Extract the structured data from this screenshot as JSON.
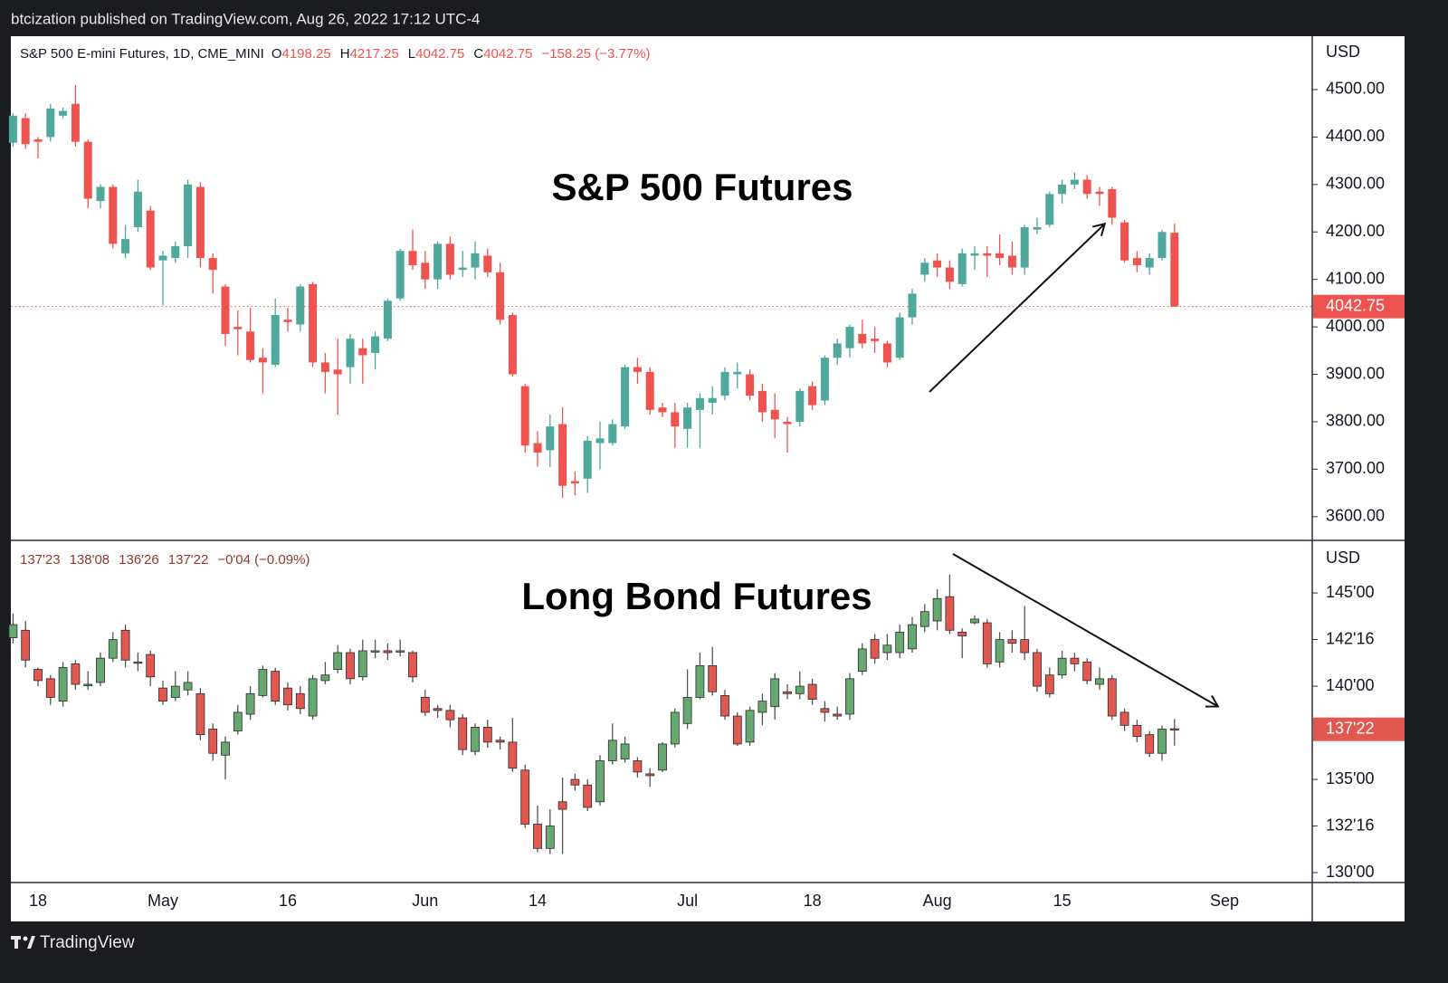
{
  "header_text": "btcization published on TradingView.com, Aug 26, 2022 17:12 UTC-4",
  "brand": "TradingView",
  "time_axis": {
    "categories": [
      null,
      null,
      "18",
      null,
      null,
      null,
      null,
      null,
      null,
      null,
      null,
      null,
      "May",
      null,
      null,
      null,
      null,
      null,
      null,
      null,
      null,
      null,
      "16",
      null,
      null,
      null,
      null,
      null,
      null,
      null,
      null,
      null,
      null,
      "Jun",
      null,
      null,
      null,
      null,
      null,
      null,
      null,
      null,
      "14",
      null,
      null,
      null,
      null,
      null,
      null,
      null,
      null,
      null,
      null,
      null,
      "Jul",
      null,
      null,
      null,
      null,
      null,
      null,
      null,
      null,
      null,
      "18",
      null,
      null,
      null,
      null,
      null,
      null,
      null,
      null,
      null,
      "Aug",
      null,
      null,
      null,
      null,
      null,
      null,
      null,
      null,
      null,
      "15",
      null,
      null,
      null,
      null,
      null,
      null,
      null,
      null,
      null,
      null,
      null,
      null,
      "Sep"
    ]
  },
  "chart_data": [
    {
      "type": "candlestick",
      "title": "S&P 500 Futures",
      "symbol": "S&P 500 E-mini Futures, 1D, CME_MINI",
      "header_keys": [
        "O",
        "H",
        "L",
        "C"
      ],
      "header_values": [
        4198.25,
        4217.25,
        4042.75,
        4042.75
      ],
      "header_change": "−158.25 (−3.77%)",
      "unit_label": "USD",
      "last_price": 4042.75,
      "up_color": "#4ea89b",
      "down_color": "#ef5350",
      "ylim": [
        3550,
        4612.5
      ],
      "yticks": [
        {
          "value": 3600,
          "label": "3600.00"
        },
        {
          "value": 3700,
          "label": "3700.00"
        },
        {
          "value": 3800,
          "label": "3800.00"
        },
        {
          "value": 3900,
          "label": "3900.00"
        },
        {
          "value": 4000,
          "label": "4000.00"
        },
        {
          "value": 4100,
          "label": "4100.00"
        },
        {
          "value": 4200,
          "label": "4200.00"
        },
        {
          "value": 4300,
          "label": "4300.00"
        },
        {
          "value": 4400,
          "label": "4400.00"
        },
        {
          "value": 4500,
          "label": "4500.00"
        }
      ],
      "open": [
        4388,
        4440,
        4395,
        4400,
        4445,
        4470,
        4390,
        4265,
        4295,
        4155,
        4210,
        4245,
        4140,
        4145,
        4170,
        4295,
        4145,
        4085,
        4000,
        3990,
        3935,
        3920,
        4015,
        4005,
        4090,
        3925,
        3910,
        3915,
        3955,
        3945,
        3975,
        4060,
        4160,
        4135,
        4100,
        4175,
        4120,
        4125,
        4150,
        4115,
        4025,
        3875,
        3755,
        3740,
        3795,
        3675,
        3680,
        3755,
        3755,
        3790,
        3915,
        3905,
        3830,
        3820,
        3785,
        3825,
        3840,
        3855,
        3900,
        3900,
        3865,
        3825,
        3800,
        3800,
        3875,
        3845,
        3935,
        3955,
        3985,
        3975,
        3965,
        3935,
        4020,
        4110,
        4140,
        4125,
        4090,
        4150,
        4155,
        4155,
        4150,
        4125,
        4205,
        4215,
        4280,
        4300,
        4310,
        4285,
        4290,
        4220,
        4145,
        4125,
        4145,
        4198.25,
        null,
        null,
        null,
        null
      ],
      "high": [
        4450,
        4450,
        4400,
        4470,
        4462,
        4510,
        4395,
        4300,
        4300,
        4215,
        4310,
        4255,
        4160,
        4180,
        4310,
        4305,
        4155,
        4090,
        4035,
        4040,
        3955,
        4060,
        4040,
        4090,
        4095,
        3945,
        3975,
        3985,
        3975,
        3990,
        4060,
        4165,
        4205,
        4160,
        4180,
        4190,
        4160,
        4180,
        4165,
        4135,
        4030,
        3880,
        3780,
        3815,
        3830,
        3695,
        3770,
        3800,
        3805,
        3920,
        3935,
        3915,
        3840,
        3840,
        3840,
        3860,
        3875,
        3915,
        3925,
        3910,
        3880,
        3860,
        3810,
        3870,
        3885,
        3940,
        3975,
        4005,
        4015,
        4000,
        3970,
        4030,
        4080,
        4145,
        4155,
        4140,
        4165,
        4170,
        4170,
        4195,
        4180,
        4215,
        4230,
        4285,
        4310,
        4325,
        4320,
        4295,
        4295,
        4225,
        4160,
        4155,
        4205,
        4217.25,
        null,
        null,
        null,
        null
      ],
      "low": [
        4380,
        4375,
        4355,
        4390,
        4440,
        4380,
        4250,
        4250,
        4165,
        4145,
        4200,
        4120,
        4045,
        4135,
        4145,
        4125,
        4070,
        3960,
        3940,
        3925,
        3860,
        3915,
        3990,
        3990,
        3915,
        3860,
        3815,
        3880,
        3880,
        3910,
        3970,
        4055,
        4120,
        4080,
        4080,
        4100,
        4105,
        4100,
        4105,
        4005,
        3895,
        3735,
        3705,
        3705,
        3640,
        3645,
        3650,
        3700,
        3750,
        3785,
        3880,
        3815,
        3810,
        3745,
        3745,
        3745,
        3815,
        3845,
        3870,
        3845,
        3800,
        3765,
        3735,
        3790,
        3825,
        3835,
        3920,
        3935,
        3955,
        3945,
        3915,
        3930,
        4005,
        4095,
        4105,
        4080,
        4085,
        4120,
        4105,
        4130,
        4110,
        4110,
        4195,
        4210,
        4260,
        4290,
        4270,
        4255,
        4215,
        4135,
        4115,
        4110,
        4140,
        4042.75,
        null,
        null,
        null,
        null
      ],
      "close": [
        4445,
        4385,
        4390,
        4460,
        4455,
        4390,
        4270,
        4295,
        4175,
        4185,
        4285,
        4125,
        4150,
        4170,
        4300,
        4145,
        4120,
        3985,
        3995,
        3930,
        3925,
        4025,
        4010,
        4085,
        3925,
        3905,
        3900,
        3975,
        3940,
        3980,
        4055,
        4160,
        4130,
        4100,
        4175,
        4110,
        4125,
        4155,
        4115,
        4015,
        3900,
        3750,
        3735,
        3790,
        3665,
        3670,
        3760,
        3765,
        3795,
        3915,
        3905,
        3825,
        3820,
        3790,
        3830,
        3850,
        3850,
        3905,
        3905,
        3855,
        3820,
        3805,
        3795,
        3865,
        3835,
        3935,
        3965,
        4000,
        3965,
        3970,
        3925,
        4020,
        4070,
        4135,
        4125,
        4095,
        4155,
        4155,
        4150,
        4145,
        4125,
        4210,
        4210,
        4280,
        4300,
        4310,
        4280,
        4280,
        4230,
        4140,
        4130,
        4145,
        4200,
        4042.75,
        null,
        null,
        null,
        null
      ]
    },
    {
      "type": "candlestick",
      "title": "Long Bond Futures",
      "header_values": [
        "137'23",
        "138'08",
        "136'26",
        "137'22"
      ],
      "header_change": "−0'04 (−0.09%)",
      "unit_label": "USD",
      "last_price": {
        "value": 137.6875,
        "label": "137'22"
      },
      "up_color": "#66a970",
      "down_color": "#e0584f",
      "ylim": [
        129.47,
        147.82
      ],
      "yticks": [
        {
          "value": 130,
          "label": "130'00"
        },
        {
          "value": 132.5,
          "label": "132'16"
        },
        {
          "value": 135,
          "label": "135'00"
        },
        {
          "value": 140,
          "label": "140'00"
        },
        {
          "value": 142.5,
          "label": "142'16"
        },
        {
          "value": 145,
          "label": "145'00"
        }
      ],
      "open": [
        142.6,
        143.0,
        140.9,
        140.4,
        139.2,
        141.2,
        140.1,
        140.2,
        141.5,
        143.0,
        141.3,
        141.7,
        139.9,
        139.4,
        139.8,
        139.6,
        137.7,
        136.3,
        137.6,
        138.5,
        139.5,
        140.8,
        139.9,
        139.6,
        138.4,
        140.3,
        140.9,
        141.8,
        140.5,
        141.9,
        141.9,
        141.9,
        141.8,
        139.4,
        138.8,
        138.7,
        138.3,
        136.5,
        137.8,
        137.1,
        137.0,
        135.5,
        132.6,
        131.3,
        133.8,
        135.0,
        134.7,
        133.8,
        136.0,
        136.1,
        136.0,
        135.3,
        135.5,
        136.9,
        138.0,
        139.4,
        141.1,
        139.5,
        138.4,
        137.0,
        138.6,
        138.9,
        139.7,
        139.6,
        140.1,
        138.8,
        138.5,
        138.5,
        140.8,
        142.5,
        141.8,
        141.8,
        142.0,
        143.2,
        143.5,
        144.8,
        142.9,
        143.4,
        143.4,
        141.3,
        142.5,
        142.5,
        141.8,
        140.6,
        140.6,
        141.5,
        141.3,
        140.1,
        140.4,
        138.6,
        137.9,
        137.4,
        136.4,
        137.71875,
        null,
        null,
        null,
        null
      ],
      "high": [
        143.9,
        143.5,
        141.0,
        140.6,
        141.3,
        141.4,
        140.8,
        141.8,
        142.9,
        143.3,
        141.8,
        141.9,
        140.3,
        140.8,
        140.8,
        139.9,
        138.0,
        137.3,
        139.0,
        140.0,
        141.1,
        141.0,
        140.2,
        140.0,
        140.6,
        141.3,
        142.2,
        142.0,
        142.5,
        142.5,
        142.3,
        142.5,
        141.9,
        139.8,
        139.0,
        139.0,
        138.5,
        138.0,
        138.2,
        137.3,
        138.3,
        135.8,
        133.6,
        133.4,
        135.1,
        135.3,
        135.0,
        136.3,
        138.0,
        137.3,
        136.2,
        135.6,
        137.0,
        138.8,
        140.9,
        141.8,
        142.1,
        139.8,
        138.6,
        138.9,
        139.6,
        140.7,
        140.1,
        140.8,
        140.4,
        139.2,
        138.9,
        140.7,
        142.3,
        142.8,
        142.8,
        143.3,
        143.7,
        144.4,
        145.2,
        146.0,
        143.1,
        143.8,
        143.6,
        142.9,
        143.0,
        144.3,
        142.0,
        141.0,
        141.9,
        141.8,
        141.5,
        141.0,
        140.6,
        138.8,
        138.2,
        137.6,
        137.9,
        138.25,
        null,
        null,
        null,
        null
      ],
      "low": [
        142.3,
        141.0,
        140.0,
        139.0,
        138.9,
        139.8,
        139.8,
        140.0,
        141.3,
        141.0,
        140.8,
        140.0,
        139.0,
        139.2,
        139.5,
        137.1,
        136.0,
        135.0,
        137.4,
        138.2,
        139.4,
        139.0,
        138.7,
        138.5,
        138.2,
        140.1,
        140.7,
        140.1,
        140.3,
        141.5,
        141.4,
        141.6,
        140.2,
        138.4,
        138.3,
        137.8,
        136.3,
        136.3,
        136.7,
        136.6,
        135.4,
        132.4,
        131.1,
        131.0,
        131.0,
        134.4,
        133.3,
        133.6,
        135.8,
        135.9,
        135.1,
        134.6,
        135.4,
        136.7,
        137.7,
        139.3,
        139.5,
        138.2,
        136.8,
        136.8,
        137.9,
        138.2,
        139.3,
        139.3,
        139.0,
        138.1,
        138.2,
        138.2,
        140.6,
        141.2,
        141.4,
        141.5,
        141.8,
        142.9,
        143.0,
        142.8,
        141.5,
        143.3,
        141.0,
        141.0,
        141.8,
        141.4,
        139.7,
        139.4,
        140.4,
        140.8,
        140.1,
        139.8,
        138.2,
        137.6,
        137.0,
        136.2,
        136.0,
        136.8125,
        null,
        null,
        null,
        null
      ],
      "close": [
        143.3,
        141.4,
        140.3,
        139.4,
        141.0,
        140.1,
        140.1,
        141.5,
        142.5,
        141.4,
        141.3,
        140.5,
        139.2,
        140.0,
        140.2,
        137.4,
        136.4,
        137.0,
        138.6,
        139.6,
        140.9,
        139.2,
        139.0,
        138.8,
        140.4,
        140.6,
        141.8,
        140.4,
        141.9,
        141.9,
        141.8,
        141.9,
        140.5,
        138.6,
        138.7,
        138.2,
        136.6,
        137.8,
        137.0,
        137.0,
        135.6,
        132.6,
        131.3,
        132.5,
        133.4,
        134.7,
        133.5,
        136.0,
        137.1,
        136.9,
        135.4,
        135.2,
        136.9,
        138.6,
        139.4,
        141.1,
        139.7,
        138.4,
        136.9,
        138.7,
        139.2,
        140.4,
        139.6,
        140.0,
        139.3,
        138.6,
        138.4,
        140.4,
        142.0,
        141.5,
        142.2,
        142.9,
        143.3,
        144.0,
        144.7,
        143.0,
        142.7,
        143.6,
        141.2,
        142.5,
        142.3,
        141.8,
        140.0,
        139.6,
        141.5,
        141.2,
        140.3,
        140.4,
        138.4,
        137.9,
        137.3,
        136.4,
        137.7,
        137.6875,
        null,
        null,
        null,
        null
      ]
    }
  ]
}
